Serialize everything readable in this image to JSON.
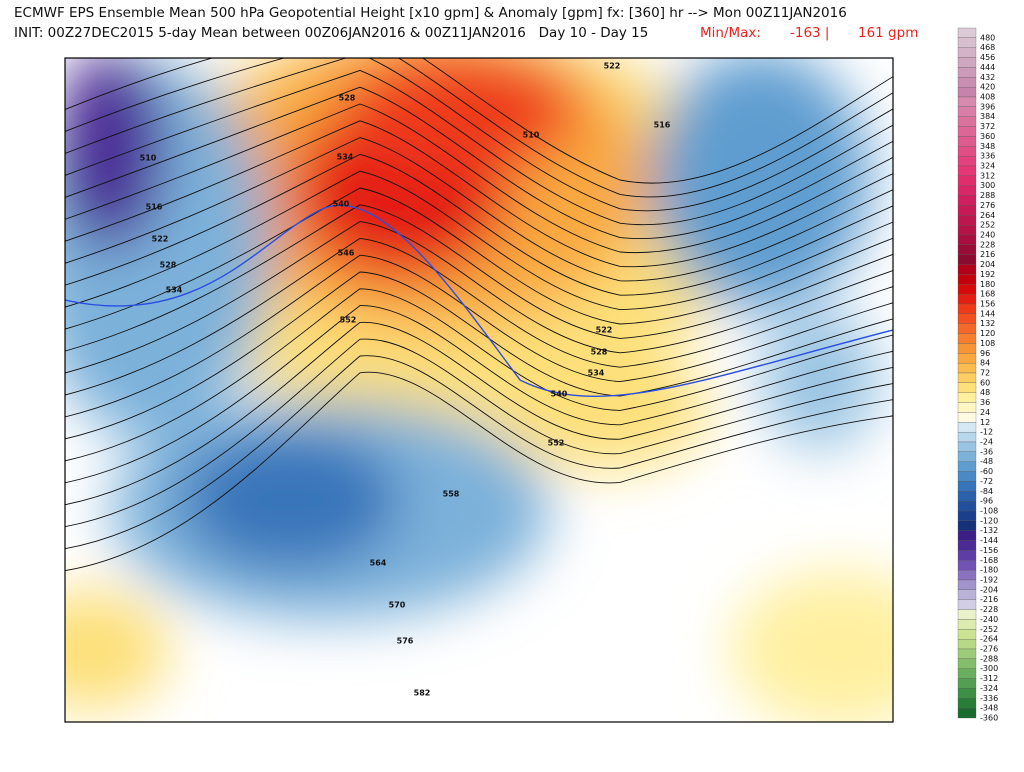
{
  "header": {
    "line1": "ECMWF EPS Ensemble Mean 500 hPa Geopotential Height [x10 gpm] & Anomaly [gpm] fx: [360] hr --> Mon 00Z11JAN2016",
    "line2": "INIT: 00Z27DEC2015 5-day Mean between 00Z06JAN2016 & 00Z11JAN2016   Day 10 - Day 15",
    "minmax_label": "Min/Max:",
    "min": "-163 |",
    "max": "161 gpm"
  },
  "legend": {
    "levels": [
      480,
      468,
      456,
      444,
      432,
      420,
      408,
      396,
      384,
      372,
      360,
      348,
      336,
      324,
      312,
      300,
      288,
      276,
      264,
      252,
      240,
      228,
      216,
      204,
      192,
      180,
      168,
      156,
      144,
      132,
      120,
      108,
      96,
      84,
      72,
      60,
      48,
      36,
      24,
      12,
      -12,
      -24,
      -36,
      -48,
      -60,
      -72,
      -84,
      -96,
      -108,
      -120,
      -132,
      -144,
      -156,
      -168,
      -180,
      -192,
      -204,
      -216,
      -228,
      -240,
      -252,
      -264,
      -276,
      -288,
      -300,
      -312,
      -324,
      -336,
      -348,
      -360
    ],
    "colors": [
      "#dccbd6",
      "#d8bfcf",
      "#d4b3c8",
      "#d0a7c1",
      "#cc9bba",
      "#c98fb3",
      "#c683ab",
      "#d68aae",
      "#d97ea6",
      "#db729e",
      "#dd6696",
      "#df5a8e",
      "#e14e86",
      "#e3427e",
      "#e53676",
      "#e02d6c",
      "#d82666",
      "#cf1f5e",
      "#c61a56",
      "#bd164f",
      "#b51248",
      "#a80f40",
      "#9a0c38",
      "#8c0a30",
      "#b3001a",
      "#c4000f",
      "#d60a0a",
      "#e41e12",
      "#ef3a1a",
      "#f25022",
      "#f4692a",
      "#f67f2f",
      "#f79536",
      "#f9a840",
      "#fabb4f",
      "#fcce62",
      "#fde079",
      "#fff0a0",
      "#fff6c4",
      "#fffbe2",
      "#d6e8f4",
      "#b8d6ec",
      "#9ac4e3",
      "#7cb1da",
      "#5f9dd0",
      "#4a89c6",
      "#3774ba",
      "#2b60ab",
      "#224f9c",
      "#1b3f8c",
      "#17307a",
      "#3c1f86",
      "#4b2a96",
      "#5e3da6",
      "#7252b2",
      "#8a72c0",
      "#a293cc",
      "#bab2d9",
      "#d2cee6",
      "#eaf2cc",
      "#dcebaf",
      "#cce393",
      "#b7d887",
      "#9ecb7a",
      "#84bd6c",
      "#6aae5f",
      "#539f52",
      "#3c8f45",
      "#287e39",
      "#176c2e"
    ]
  },
  "map": {
    "contour_labels": [
      528,
      522,
      510,
      516,
      534,
      510,
      516,
      522,
      540,
      528,
      546,
      534,
      552,
      522,
      528,
      534,
      540,
      552,
      558,
      564,
      570,
      576,
      582
    ]
  }
}
